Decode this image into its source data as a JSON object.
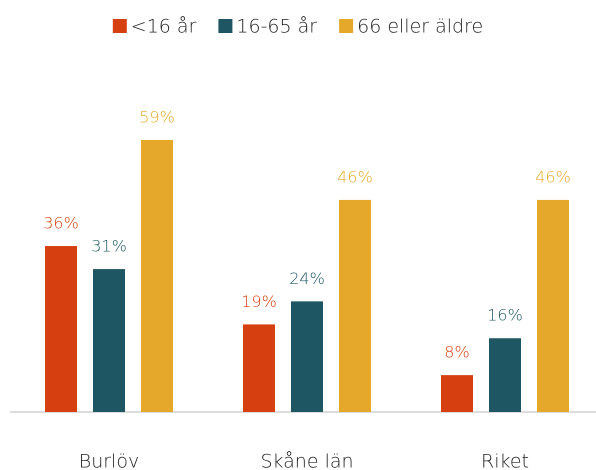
{
  "chart_data": {
    "type": "bar",
    "categories": [
      "Burlöv",
      "Skåne län",
      "Riket"
    ],
    "series": [
      {
        "name": "<16 år",
        "color": "#d64011",
        "values": [
          36,
          19,
          8
        ],
        "value_labels": [
          "36%",
          "19%",
          "8%"
        ]
      },
      {
        "name": "16-65 år",
        "color": "#1f5663",
        "values": [
          31,
          24,
          16
        ],
        "value_labels": [
          "31%",
          "24%",
          "16%"
        ]
      },
      {
        "name": "66 eller äldre",
        "color": "#e5a82a",
        "values": [
          59,
          46,
          46
        ],
        "value_labels": [
          "59%",
          "46%",
          "46%"
        ]
      }
    ],
    "legend": "top"
  }
}
